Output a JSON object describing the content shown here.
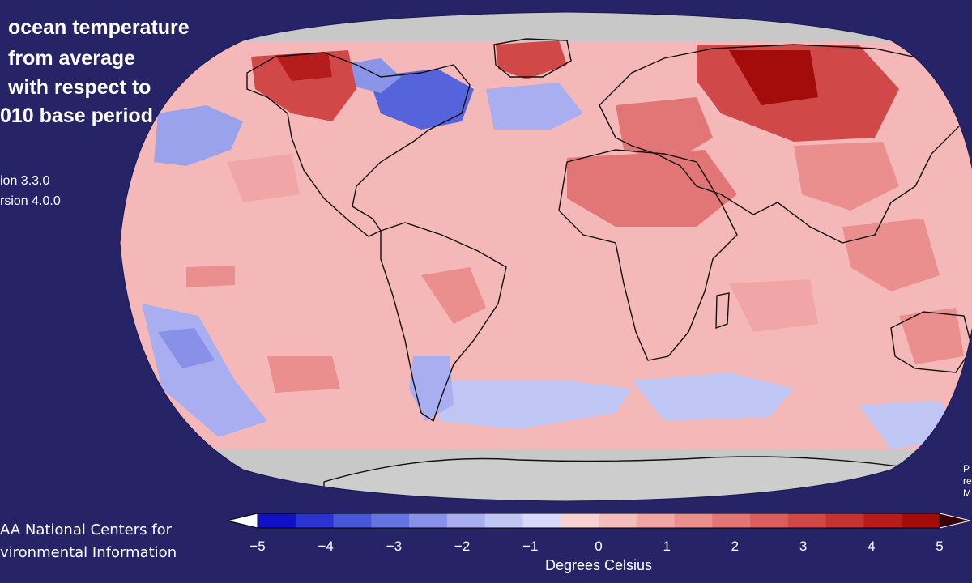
{
  "title": {
    "lines": [
      "ocean temperature",
      "from average",
      "with respect to",
      "010 base period"
    ]
  },
  "dataset_versions": [
    "ion 3.3.0",
    "rsion 4.0.0"
  ],
  "credit": {
    "lines": [
      "AA National Centers for",
      "vironmental Information"
    ]
  },
  "side_note": {
    "lines": [
      "P",
      "re",
      "M"
    ]
  },
  "map": {
    "ocean_fill": "#f4b8b8",
    "land_fill": "#f2c0c0",
    "no_data_fill": "#c8c8c8",
    "background": "#262366"
  },
  "colorbar": {
    "title": "Degrees Celsius",
    "ticks": [
      "−5",
      "−4",
      "−3",
      "−2",
      "−1",
      "0",
      "1",
      "2",
      "3",
      "4",
      "5"
    ],
    "min": -5,
    "max": 5,
    "colors": [
      "#1010c8",
      "#2a34d0",
      "#4658d8",
      "#6474e0",
      "#8890e8",
      "#a8aef0",
      "#c0c6f4",
      "#d6daf8",
      "#f8d2d2",
      "#f4bcbc",
      "#f0a6a6",
      "#ea8e8e",
      "#e27676",
      "#da5e5e",
      "#d04848",
      "#c43232",
      "#b61c1c",
      "#a40c0c"
    ],
    "lower_arrow_color": "#ffffff",
    "upper_arrow_color": "#3a0008"
  }
}
